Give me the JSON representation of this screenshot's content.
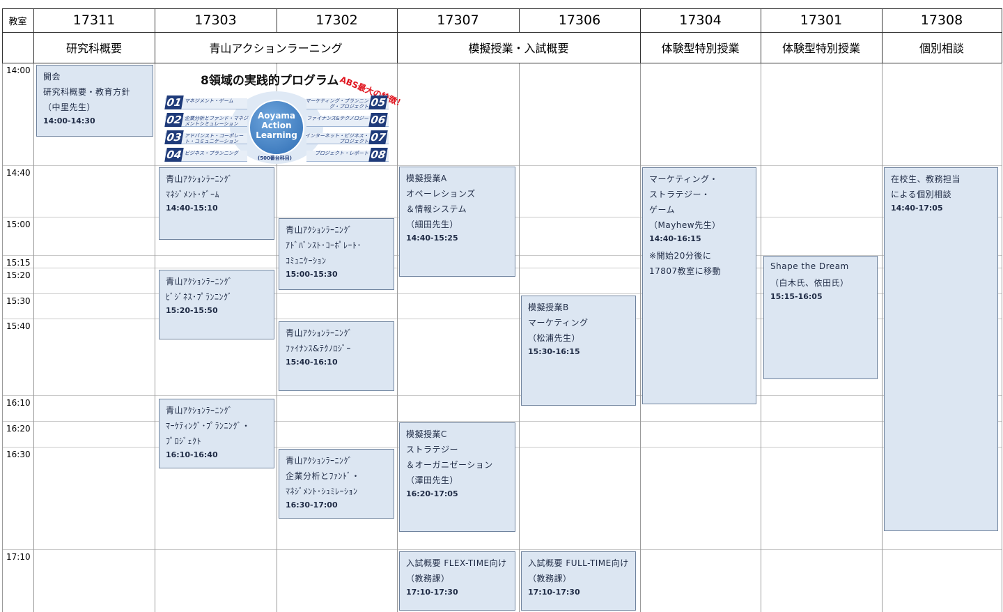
{
  "header": {
    "room_label": "教室",
    "rooms": [
      "17311",
      "17303",
      "17302",
      "17307",
      "17306",
      "17304",
      "17301",
      "17308"
    ],
    "categories": [
      "研究科概要",
      "青山アクションラーニング",
      "模擬授業・入試概要",
      "体験型特別授業",
      "体験型特別授業",
      "個別相談"
    ]
  },
  "times": [
    "14:00",
    "14:40",
    "15:00",
    "15:15",
    "15:20",
    "15:30",
    "15:40",
    "16:10",
    "16:20",
    "16:30",
    "17:10"
  ],
  "program_graphic": {
    "title": "8領域の実践的プログラム",
    "badge": "ABS最大の特徴！",
    "center": [
      "Aoyama",
      "Action",
      "Learning"
    ],
    "center_note": "(500番台科目)",
    "items": [
      {
        "number": "01",
        "label": "マネジメント・ゲーム"
      },
      {
        "number": "02",
        "label": "企業分析とファンド・マネジメントシミュレーション"
      },
      {
        "number": "03",
        "label": "アドバンスト・コーポレート・コミュニケーション"
      },
      {
        "number": "04",
        "label": "ビジネス・プランニング"
      },
      {
        "number": "05",
        "label": "マーケティング・プランニング・プロジェクト"
      },
      {
        "number": "06",
        "label": "ファイナンス&テクノロジー"
      },
      {
        "number": "07",
        "label": "インターネット・ビジネス・プロジェクト"
      },
      {
        "number": "08",
        "label": "プロジェクト・レポート"
      }
    ]
  },
  "events": [
    {
      "lines": [
        "開会",
        "研究科概要・教育方針",
        "（中里先生）",
        "14:00-14:30"
      ]
    },
    {
      "lines": [
        "青山ｱｸｼｮﾝﾗｰﾆﾝｸﾞ",
        "ﾏﾈｼﾞﾒﾝﾄ･ｹﾞｰﾑ",
        "14:40-15:10"
      ]
    },
    {
      "lines": [
        "青山ｱｸｼｮﾝﾗｰﾆﾝｸﾞ",
        "ﾋﾞｼﾞﾈｽ･ﾌﾟﾗﾝﾆﾝｸﾞ",
        "15:20-15:50"
      ]
    },
    {
      "lines": [
        "青山ｱｸｼｮﾝﾗｰﾆﾝｸﾞ",
        "ﾏｰｹﾃｨﾝｸﾞ･ﾌﾟﾗﾝﾆﾝｸﾞ・",
        "ﾌﾟﾛｼﾞｪｸﾄ",
        "16:10-16:40"
      ]
    },
    {
      "lines": [
        "青山ｱｸｼｮﾝﾗｰﾆﾝｸﾞ",
        "ｱﾄﾞﾊﾞﾝｽﾄ･ｺｰﾎﾟﾚｰﾄ･",
        "ｺﾐｭﾆｹｰｼｮﾝ",
        "15:00-15:30"
      ]
    },
    {
      "lines": [
        "青山ｱｸｼｮﾝﾗｰﾆﾝｸﾞ",
        "ﾌｧｲﾅﾝｽ&ﾃｸﾉﾛｼﾞｰ",
        "15:40-16:10"
      ]
    },
    {
      "lines": [
        "青山ｱｸｼｮﾝﾗｰﾆﾝｸﾞ",
        "企業分析とﾌｧﾝﾄﾞ・",
        "ﾏﾈｼﾞﾒﾝﾄ･ｼｭﾐﾚｰｼｮﾝ",
        "16:30-17:00"
      ]
    },
    {
      "lines": [
        "模擬授業A",
        "オペーレションズ",
        "＆情報システム",
        "（細田先生）",
        "14:40-15:25"
      ]
    },
    {
      "lines": [
        "模擬授業C",
        "ストラテジー",
        "＆オーガニゼーション",
        "（澤田先生）",
        "16:20-17:05"
      ]
    },
    {
      "lines": [
        "入試概要 FLEX-TIME向け",
        "（教務課）",
        "17:10-17:30"
      ]
    },
    {
      "lines": [
        "模擬授業B",
        "マーケティング",
        "（松浦先生）",
        "15:30-16:15"
      ]
    },
    {
      "lines": [
        "入試概要 FULL-TIME向け",
        "（教務課）",
        "17:10-17:30"
      ]
    },
    {
      "lines": [
        "マーケティング・",
        "ストラテジー・",
        "ゲーム",
        "（Mayhew先生）",
        "14:40-16:15",
        "※開始20分後に",
        "17807教室に移動"
      ]
    },
    {
      "lines": [
        "Shape the Dream",
        "（白木氏、依田氏）",
        "15:15-16:05"
      ]
    },
    {
      "lines": [
        "在校生、教務担当",
        "による個別相談",
        "14:40-17:05"
      ]
    }
  ]
}
